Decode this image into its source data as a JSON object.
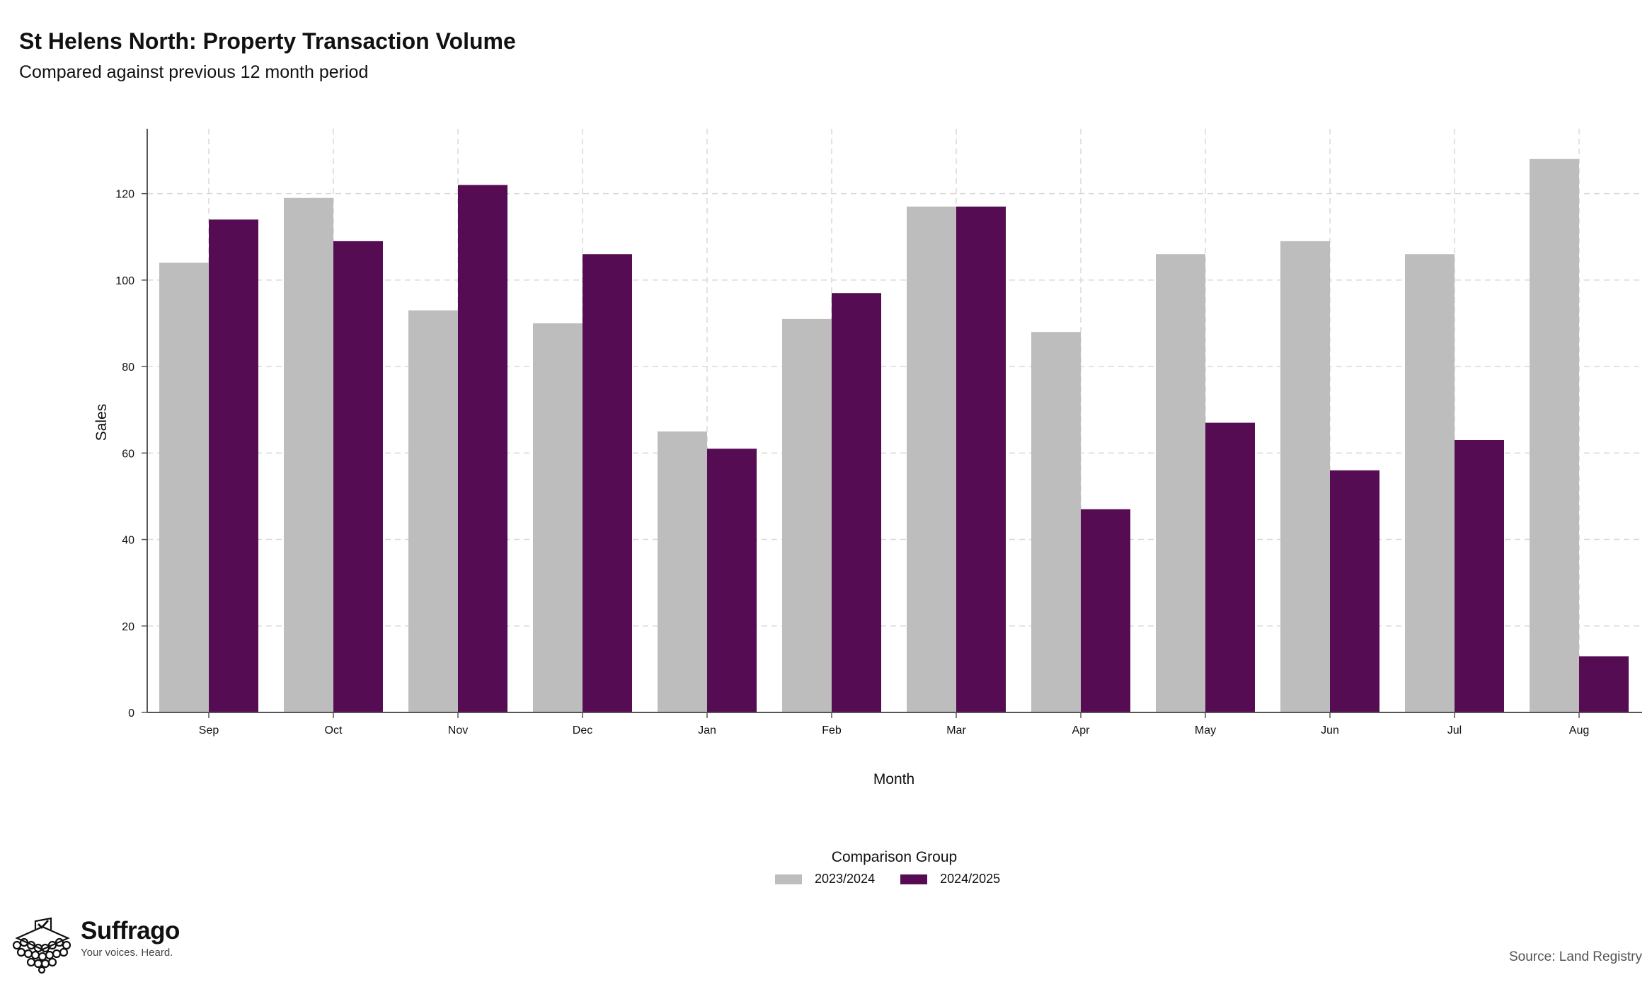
{
  "title": "St Helens North: Property Transaction Volume",
  "subtitle": "Compared against previous 12 month period",
  "legend": {
    "title": "Comparison Group",
    "items": [
      {
        "label": "2023/2024",
        "color": "#bdbdbd"
      },
      {
        "label": "2024/2025",
        "color": "#560c52"
      }
    ]
  },
  "logo": {
    "name": "Suffrago",
    "tagline": "Your voices. Heard.",
    "icon": "ballot-box-icon"
  },
  "source": "Source: Land Registry",
  "chart_data": {
    "type": "bar",
    "xlabel": "Month",
    "ylabel": "Sales",
    "ylim": [
      0,
      135
    ],
    "yticks": [
      0,
      20,
      40,
      60,
      80,
      100,
      120
    ],
    "grid": true,
    "legend_position": "bottom",
    "categories": [
      "Sep",
      "Oct",
      "Nov",
      "Dec",
      "Jan",
      "Feb",
      "Mar",
      "Apr",
      "May",
      "Jun",
      "Jul",
      "Aug"
    ],
    "series": [
      {
        "name": "2023/2024",
        "color": "#bdbdbd",
        "values": [
          104,
          119,
          93,
          90,
          65,
          91,
          117,
          88,
          106,
          109,
          106,
          128
        ]
      },
      {
        "name": "2024/2025",
        "color": "#560c52",
        "values": [
          114,
          109,
          122,
          106,
          61,
          97,
          117,
          47,
          67,
          56,
          63,
          13
        ]
      }
    ]
  }
}
